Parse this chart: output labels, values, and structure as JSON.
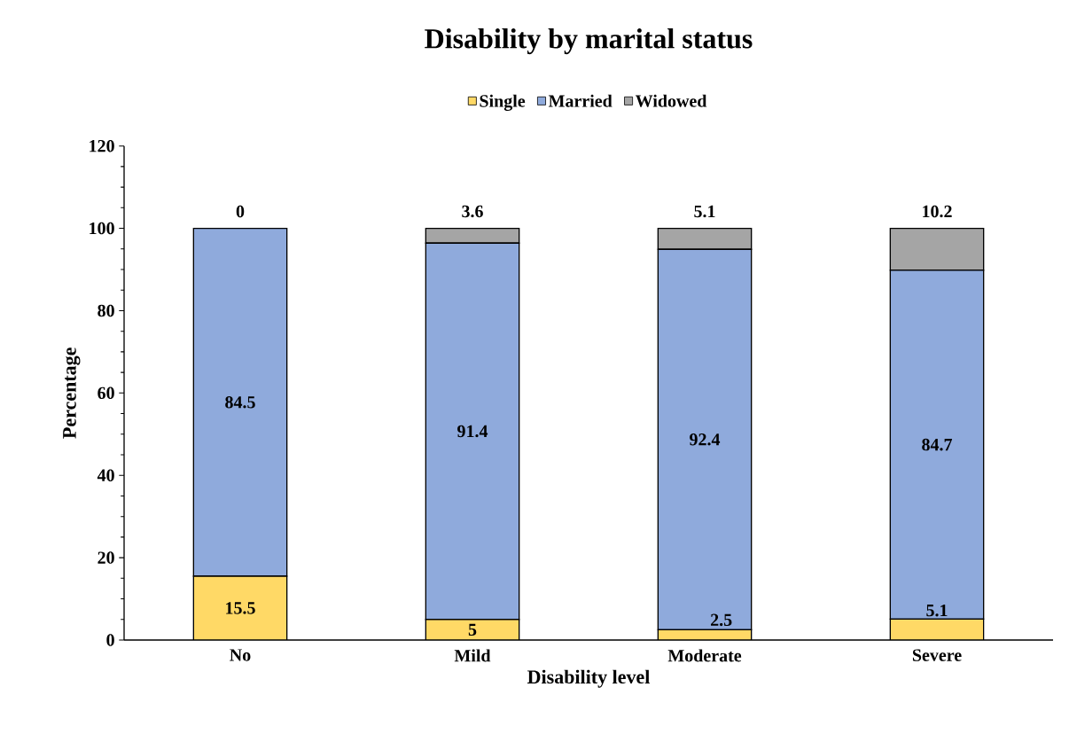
{
  "chart_data": {
    "type": "bar",
    "stacked": true,
    "title": "Disability by marital status",
    "xlabel": "Disability level",
    "ylabel": "Percentage",
    "categories": [
      "No",
      "Mild",
      "Moderate",
      "Severe"
    ],
    "series": [
      {
        "name": "Single",
        "color": "#ffd966",
        "values": [
          15.5,
          5,
          2.5,
          5.1
        ]
      },
      {
        "name": "Married",
        "color": "#8faadc",
        "values": [
          84.5,
          91.4,
          92.4,
          84.7
        ]
      },
      {
        "name": "Widowed",
        "color": "#a5a5a5",
        "values": [
          0,
          3.6,
          5.1,
          10.2
        ]
      }
    ],
    "ylim": [
      0,
      120
    ],
    "yticks": [
      0,
      20,
      40,
      60,
      80,
      100,
      120
    ],
    "data_labels": true,
    "legend": "top",
    "grid": false
  }
}
